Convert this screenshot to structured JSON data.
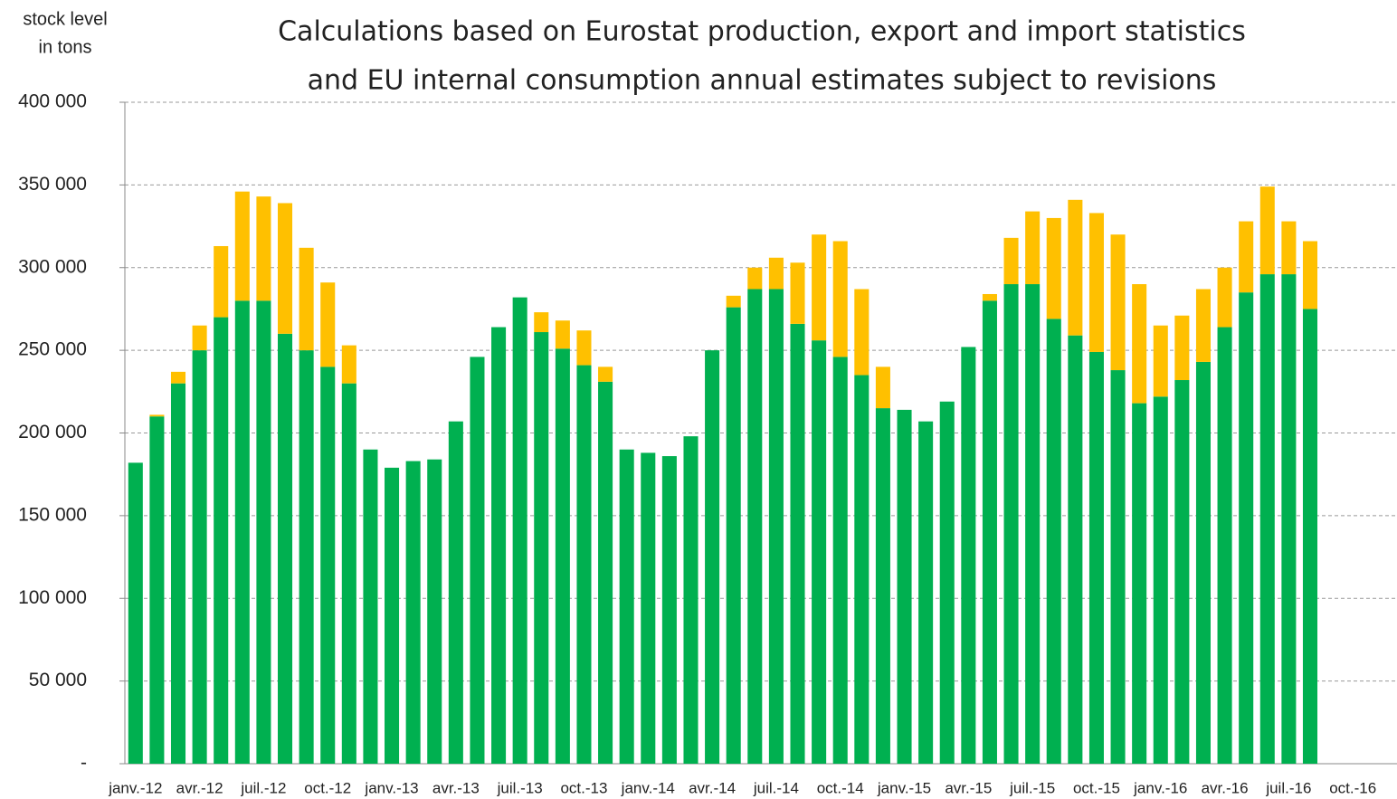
{
  "chart_data": {
    "type": "stacked_bar",
    "subtitle": [
      "Calculations based on Eurostat production, export and import statistics",
      "and EU internal consumption annual estimates subject to revisions"
    ],
    "y_label": [
      "stock level",
      "in tons"
    ],
    "categories": [
      "janv.-12",
      null,
      null,
      "avr.-12",
      null,
      null,
      "juil.-12",
      null,
      null,
      "oct.-12",
      null,
      null,
      "janv.-13",
      null,
      null,
      "avr.-13",
      null,
      null,
      "juil.-13",
      null,
      null,
      "oct.-13",
      null,
      null,
      "janv.-14",
      null,
      null,
      "avr.-14",
      null,
      null,
      "juil.-14",
      null,
      null,
      "oct.-14",
      null,
      null,
      "janv.-15",
      null,
      null,
      "avr.-15",
      null,
      null,
      "juil.-15",
      null,
      null,
      "oct.-15",
      null,
      null,
      "janv.-16",
      null,
      null,
      "avr.-16",
      null,
      null,
      "juil.-16",
      null,
      null,
      "oct.-16"
    ],
    "series": [
      {
        "color": "#00b050",
        "values": [
          182000,
          210000,
          230000,
          250000,
          270000,
          280000,
          280000,
          260000,
          250000,
          240000,
          230000,
          190000,
          179000,
          183000,
          184000,
          207000,
          246000,
          264000,
          282000,
          261000,
          251000,
          241000,
          231000,
          190000,
          188000,
          186000,
          198000,
          250000,
          276000,
          287000,
          287000,
          266000,
          256000,
          246000,
          235000,
          215000,
          214000,
          207000,
          219000,
          252000,
          280000,
          290000,
          290000,
          269000,
          259000,
          249000,
          238000,
          218000,
          222000,
          232000,
          243000,
          264000,
          285000,
          296000,
          296000,
          275000,
          null,
          null
        ]
      },
      {
        "color": "#ffc000",
        "values": [
          null,
          1000,
          7000,
          15000,
          43000,
          66000,
          63000,
          79000,
          62000,
          51000,
          23000,
          null,
          null,
          null,
          null,
          null,
          null,
          null,
          null,
          12000,
          17000,
          21000,
          9000,
          null,
          null,
          null,
          null,
          null,
          7000,
          13000,
          19000,
          37000,
          64000,
          70000,
          52000,
          25000,
          null,
          null,
          null,
          null,
          4000,
          28000,
          44000,
          61000,
          82000,
          84000,
          82000,
          72000,
          43000,
          39000,
          44000,
          36000,
          43000,
          53000,
          32000,
          41000,
          null,
          null
        ]
      }
    ],
    "ylim": [
      0,
      400000
    ],
    "yticks": [
      {
        "value": 0,
        "label": "-"
      },
      {
        "value": 50000,
        "label": "50 000"
      },
      {
        "value": 100000,
        "label": "100 000"
      },
      {
        "value": 150000,
        "label": "150 000"
      },
      {
        "value": 200000,
        "label": "200 000"
      },
      {
        "value": 250000,
        "label": "250 000"
      },
      {
        "value": 300000,
        "label": "300 000"
      },
      {
        "value": 350000,
        "label": "350 000"
      },
      {
        "value": 400000,
        "label": "400 000"
      }
    ],
    "grid": true
  }
}
